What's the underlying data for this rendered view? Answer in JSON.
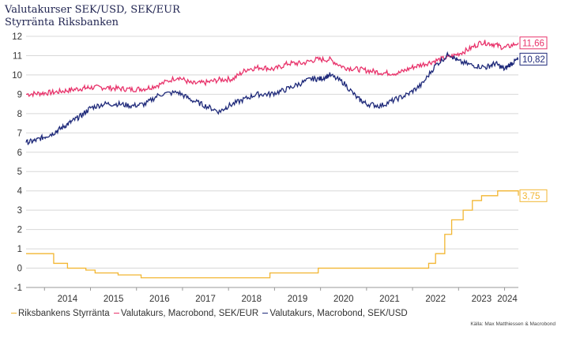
{
  "chart_data": {
    "type": "line",
    "title": "Valutakurser SEK/USD, SEK/EUR",
    "subtitle": "Styrränta Riksbanken",
    "xlabel": "",
    "ylabel": "",
    "ylim": [
      -1,
      12
    ],
    "xlim": [
      2013.6,
      2024.3
    ],
    "y_ticks": [
      "-1",
      "0",
      "1",
      "2",
      "3",
      "4",
      "5",
      "6",
      "7",
      "8",
      "9",
      "10",
      "11",
      "12"
    ],
    "x_ticks": [
      "2014",
      "2015",
      "2016",
      "2017",
      "2018",
      "2019",
      "2020",
      "2021",
      "2022",
      "2023",
      "2024"
    ],
    "grid": "horizontal",
    "legend_position": "bottom",
    "source": "Källa: Max Matthiessen & Macrobond",
    "series": [
      {
        "name": "Riksbankens Styrränta",
        "color": "#f2b632",
        "end_label": "3,75",
        "step": true,
        "x": [
          2013.6,
          2013.9,
          2014.2,
          2014.5,
          2014.9,
          2015.1,
          2015.2,
          2015.6,
          2016.1,
          2016.5,
          2018.5,
          2018.9,
          2019.5,
          2019.95,
          2021.5,
          2022.35,
          2022.5,
          2022.7,
          2022.85,
          2022.95,
          2023.1,
          2023.3,
          2023.5,
          2023.65,
          2023.85,
          2024.05,
          2024.2,
          2024.3
        ],
        "y": [
          0.75,
          0.75,
          0.25,
          0.0,
          -0.1,
          -0.25,
          -0.25,
          -0.35,
          -0.5,
          -0.5,
          -0.5,
          -0.25,
          -0.25,
          0.0,
          0.0,
          0.25,
          0.75,
          1.75,
          2.5,
          2.5,
          3.0,
          3.5,
          3.75,
          3.75,
          4.0,
          4.0,
          4.0,
          3.75
        ]
      },
      {
        "name": "Valutakurs, Macrobond, SEK/EUR",
        "color": "#e8336b",
        "end_label": "11,66",
        "x": [
          2013.6,
          2013.9,
          2014.2,
          2014.5,
          2014.8,
          2015.0,
          2015.3,
          2015.6,
          2015.9,
          2016.2,
          2016.5,
          2016.9,
          2017.2,
          2017.5,
          2017.8,
          2018.1,
          2018.4,
          2018.7,
          2019.0,
          2019.3,
          2019.6,
          2019.9,
          2020.2,
          2020.5,
          2020.8,
          2021.1,
          2021.4,
          2021.7,
          2022.0,
          2022.3,
          2022.6,
          2022.9,
          2023.2,
          2023.5,
          2023.75,
          2024.0,
          2024.3
        ],
        "y": [
          9.0,
          9.05,
          9.1,
          9.2,
          9.3,
          9.35,
          9.35,
          9.3,
          9.25,
          9.3,
          9.5,
          9.9,
          9.55,
          9.6,
          9.75,
          9.8,
          10.3,
          10.4,
          10.3,
          10.6,
          10.6,
          10.8,
          10.8,
          10.4,
          10.3,
          10.2,
          10.1,
          10.1,
          10.4,
          10.6,
          10.8,
          11.0,
          11.3,
          11.7,
          11.6,
          11.4,
          11.66
        ]
      },
      {
        "name": "Valutakurs, Macrobond, SEK/USD",
        "color": "#1f2a7a",
        "end_label": "10,82",
        "x": [
          2013.6,
          2013.8,
          2014.0,
          2014.2,
          2014.4,
          2014.6,
          2014.8,
          2015.0,
          2015.3,
          2015.6,
          2015.9,
          2016.2,
          2016.5,
          2016.9,
          2017.2,
          2017.5,
          2017.8,
          2018.0,
          2018.3,
          2018.6,
          2018.9,
          2019.2,
          2019.5,
          2019.8,
          2020.0,
          2020.2,
          2020.5,
          2020.8,
          2021.0,
          2021.3,
          2021.6,
          2021.9,
          2022.2,
          2022.5,
          2022.8,
          2023.0,
          2023.3,
          2023.6,
          2023.8,
          2024.0,
          2024.15,
          2024.3
        ],
        "y": [
          6.5,
          6.6,
          6.8,
          7.0,
          7.3,
          7.6,
          7.9,
          8.3,
          8.5,
          8.5,
          8.4,
          8.5,
          9.0,
          9.1,
          8.7,
          8.4,
          8.1,
          8.4,
          8.7,
          9.0,
          9.0,
          9.2,
          9.5,
          9.8,
          9.8,
          10.0,
          9.6,
          8.8,
          8.5,
          8.4,
          8.7,
          9.0,
          9.5,
          10.5,
          11.1,
          10.7,
          10.5,
          10.4,
          10.6,
          10.3,
          10.6,
          10.82
        ]
      }
    ]
  }
}
